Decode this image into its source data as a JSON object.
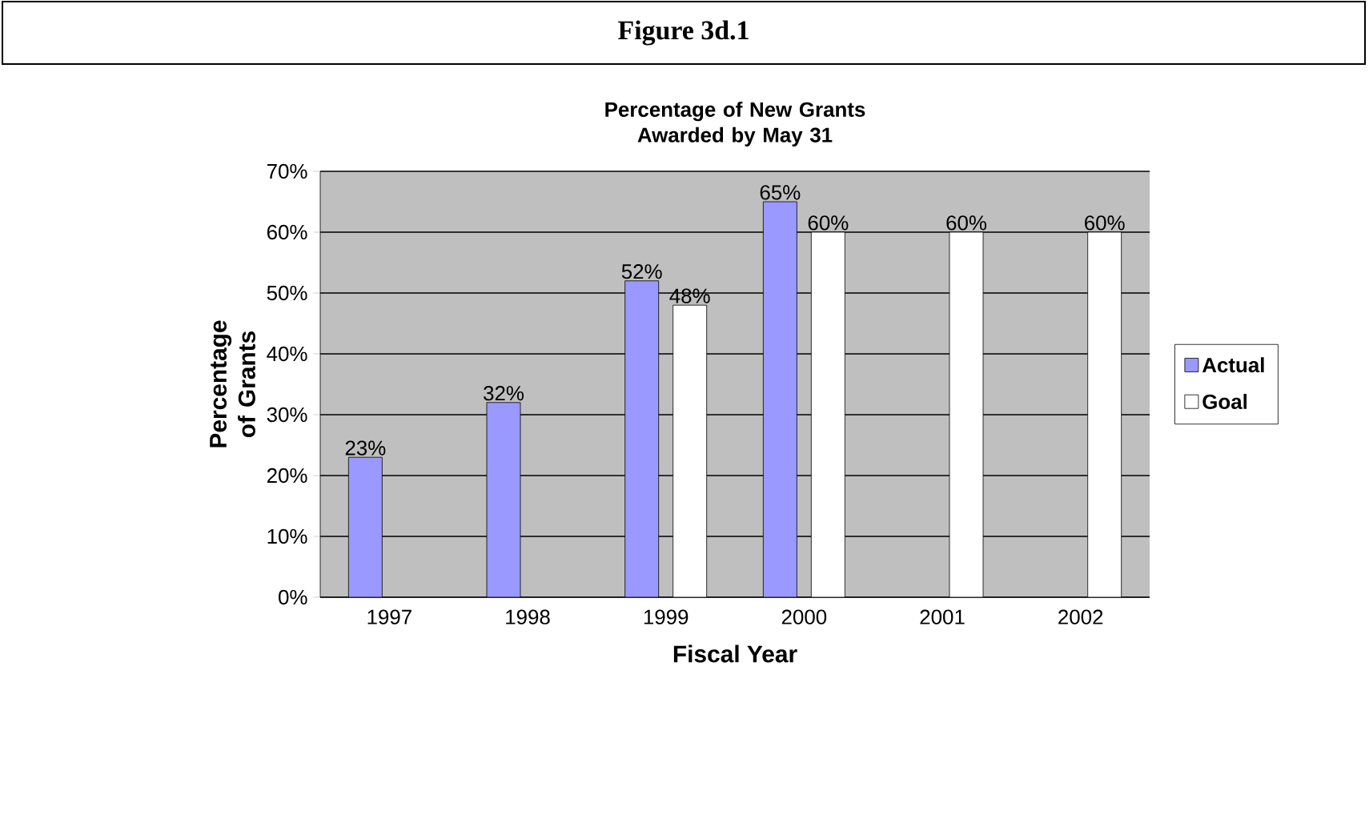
{
  "chart_data": {
    "type": "bar",
    "title": "Percentage of New Grants Awarded by May 31",
    "xlabel": "Fiscal Year",
    "ylabel": "Percentage of Grants",
    "annotations": [
      "Figure 3d.1"
    ],
    "categories": [
      "1997",
      "1998",
      "1999",
      "2000",
      "2001",
      "2002"
    ],
    "series": [
      {
        "name": "Actual",
        "color": "#9999ff",
        "values": [
          23,
          32,
          52,
          65,
          null,
          null
        ],
        "value_labels": [
          "23%",
          "32%",
          "52%",
          "65%",
          null,
          null
        ]
      },
      {
        "name": "Goal",
        "color": "#ffffff",
        "values": [
          null,
          null,
          48,
          60,
          60,
          60
        ],
        "value_labels": [
          null,
          null,
          "48%",
          "60%",
          "60%",
          "60%"
        ]
      }
    ],
    "ylim": [
      0,
      70
    ],
    "yticks": [
      {
        "value": 0,
        "label": "0%"
      },
      {
        "value": 10,
        "label": "10%"
      },
      {
        "value": 20,
        "label": "20%"
      },
      {
        "value": 30,
        "label": "30%"
      },
      {
        "value": 40,
        "label": "40%"
      },
      {
        "value": 50,
        "label": "50%"
      },
      {
        "value": 60,
        "label": "60%"
      },
      {
        "value": 70,
        "label": "70%"
      }
    ],
    "grid": "y",
    "legend": "right"
  }
}
